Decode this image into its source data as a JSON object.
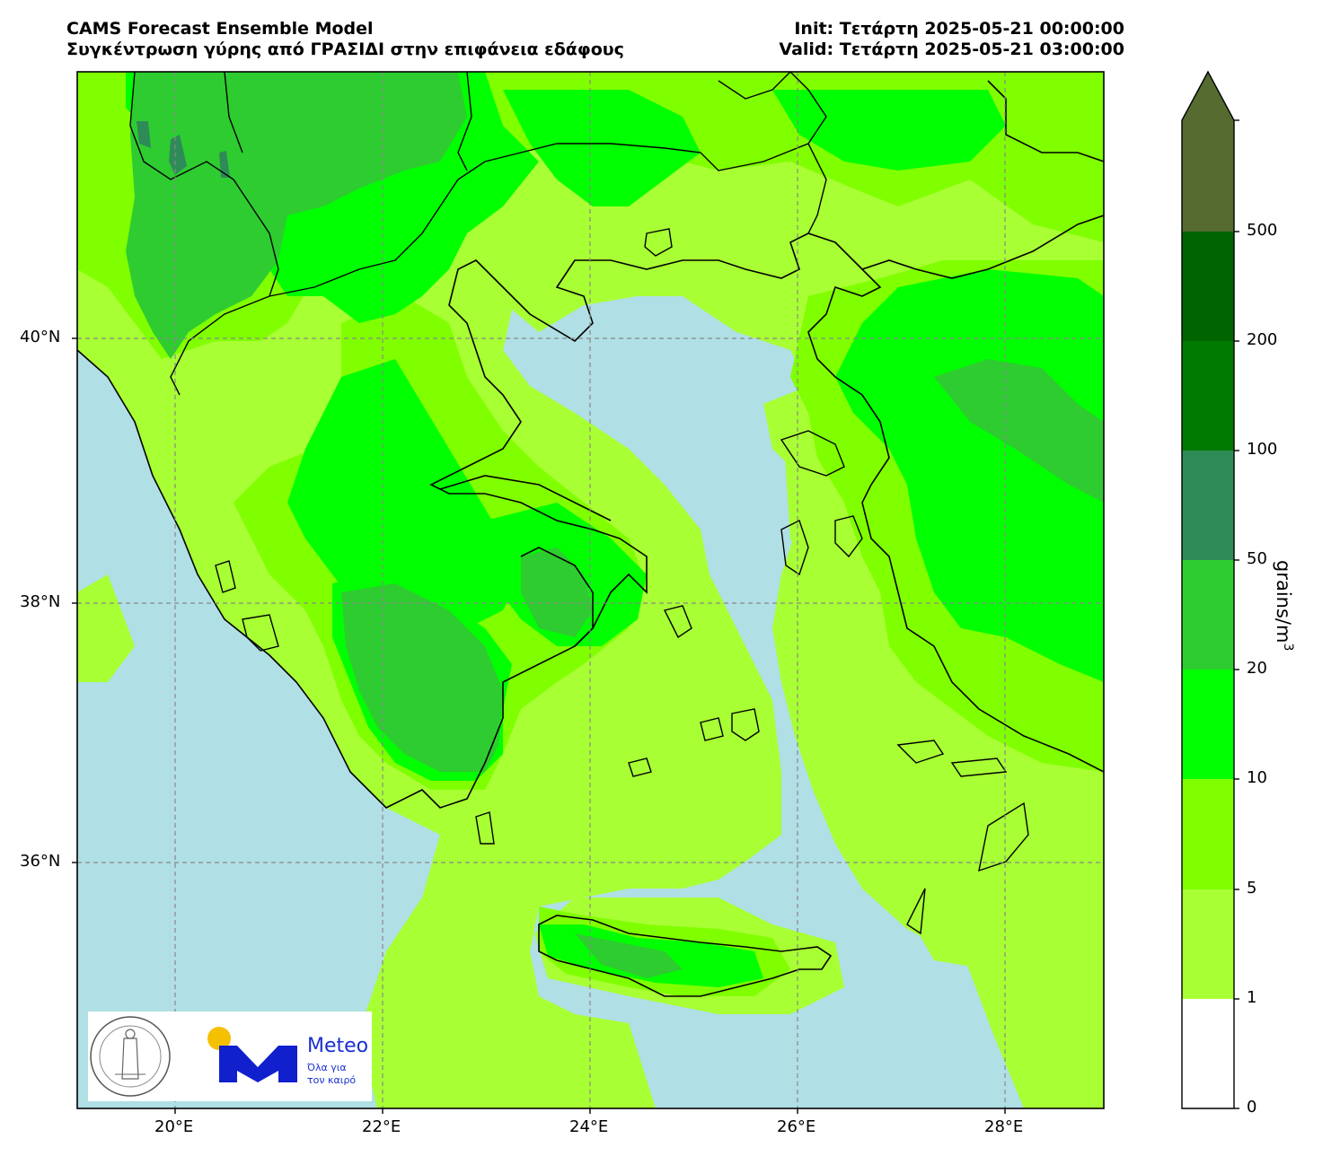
{
  "header": {
    "title_left_line1": "CAMS Forecast Ensemble Model",
    "title_left_line2": "Συγκέντρωση γύρης από ΓΡΑΣΙΔΙ στην επιφάνεια εδάφους",
    "title_right_line1": "Init: Τετάρτη 2025-05-21 00:00:00",
    "title_right_line2": "Valid: Τετάρτη 2025-05-21 03:00:00"
  },
  "map": {
    "lon_range": [
      19.0,
      28.9
    ],
    "lat_range": [
      34.2,
      41.97
    ],
    "sea_color": "#b0dfe5",
    "land_base_color": "#a8ff33",
    "gridlines": true,
    "lon_ticks": [
      {
        "value": 20,
        "label": "20°E"
      },
      {
        "value": 22,
        "label": "22°E"
      },
      {
        "value": 24,
        "label": "24°E"
      },
      {
        "value": 26,
        "label": "26°E"
      },
      {
        "value": 28,
        "label": "28°E"
      }
    ],
    "lat_ticks": [
      {
        "value": 36,
        "label": "36°N"
      },
      {
        "value": 38,
        "label": "38°N"
      },
      {
        "value": 40,
        "label": "40°N"
      }
    ]
  },
  "colorbar": {
    "title": "grains/m",
    "title_sup": "3",
    "levels": [
      "0",
      "1",
      "5",
      "10",
      "20",
      "50",
      "100",
      "200",
      "500"
    ],
    "colors": [
      "#ffffff",
      "#a8ff33",
      "#80ff00",
      "#00ff00",
      "#2ecc30",
      "#2e8b57",
      "#007a00",
      "#006400",
      "#556b2f"
    ],
    "extend_color": "#556b2f"
  },
  "logos": {
    "observatory_logo": "national-observatory-of-athens-seal",
    "meteo_logo": "meteo-m-logo",
    "meteo_word": "Meteo",
    "meteo_tag_line1": "Όλα για",
    "meteo_tag_line2": "τον καιρό"
  }
}
